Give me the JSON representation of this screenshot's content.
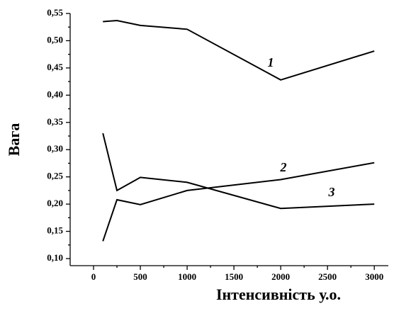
{
  "chart_data": {
    "type": "line",
    "x_label": "Інтенсивність у.о.",
    "y_label": "Вага",
    "x": [
      100,
      250,
      500,
      1000,
      2000,
      3000
    ],
    "series": [
      {
        "name": "1",
        "color": "#000000",
        "values": [
          0.535,
          0.537,
          0.528,
          0.521,
          0.428,
          0.481
        ]
      },
      {
        "name": "2",
        "color": "#000000",
        "values": [
          0.132,
          0.208,
          0.199,
          0.225,
          0.245,
          0.276
        ]
      },
      {
        "name": "3",
        "color": "#000000",
        "values": [
          0.33,
          0.225,
          0.249,
          0.24,
          0.192,
          0.2
        ]
      }
    ],
    "xlim": [
      -250,
      3150
    ],
    "ylim": [
      0.087,
      0.55
    ],
    "xticks": [
      0,
      500,
      1000,
      1500,
      2000,
      2500,
      3000
    ],
    "yticks": [
      {
        "value": 0.1,
        "label": "0,10"
      },
      {
        "value": 0.15,
        "label": "0,15"
      },
      {
        "value": 0.2,
        "label": "0,20"
      },
      {
        "value": 0.25,
        "label": "0,25"
      },
      {
        "value": 0.3,
        "label": "0,30"
      },
      {
        "value": 0.35,
        "label": "0,35"
      },
      {
        "value": 0.4,
        "label": "0,40"
      },
      {
        "value": 0.45,
        "label": "0,45"
      },
      {
        "value": 0.5,
        "label": "0,50"
      },
      {
        "value": 0.55,
        "label": "0,55"
      }
    ],
    "grid": false
  }
}
